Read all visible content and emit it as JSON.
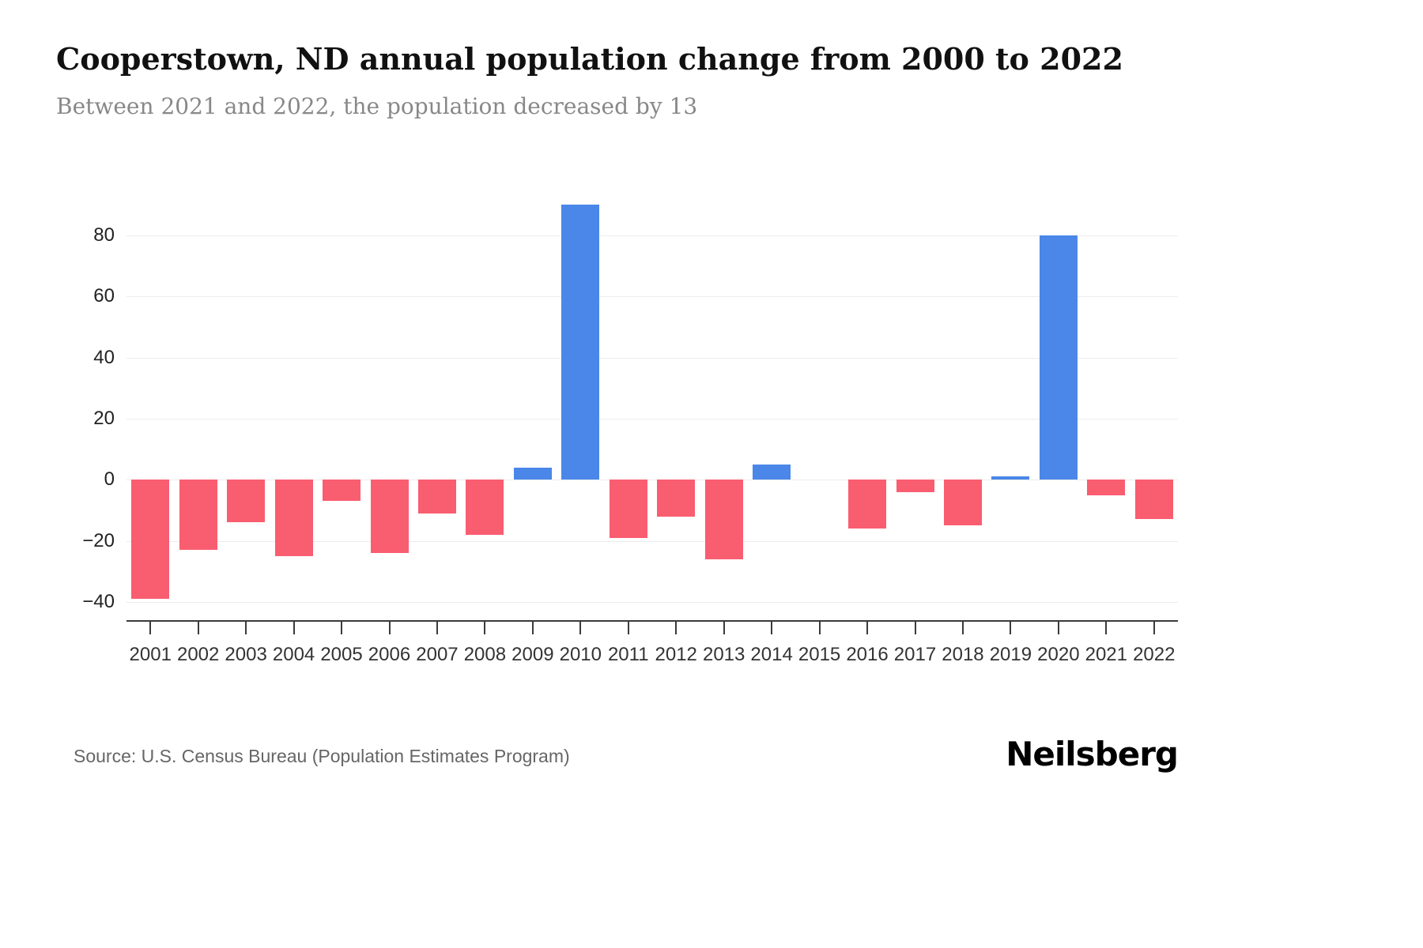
{
  "chart": {
    "title": "Cooperstown, ND annual population change from 2000 to 2022",
    "subtitle": "Between 2021 and 2022, the population decreased by 13",
    "source": "Source: U.S. Census Bureau (Population Estimates Program)",
    "brand": "Neilsberg"
  },
  "chart_data": {
    "type": "bar",
    "title": "Cooperstown, ND annual population change from 2000 to 2022",
    "subtitle": "Between 2021 and 2022, the population decreased by 13",
    "xlabel": "",
    "ylabel": "",
    "categories": [
      "2001",
      "2002",
      "2003",
      "2004",
      "2005",
      "2006",
      "2007",
      "2008",
      "2009",
      "2010",
      "2011",
      "2012",
      "2013",
      "2014",
      "2015",
      "2016",
      "2017",
      "2018",
      "2019",
      "2020",
      "2021",
      "2022"
    ],
    "values": [
      -39,
      -23,
      -14,
      -25,
      -7,
      -24,
      -11,
      -18,
      4,
      90,
      -19,
      -12,
      -26,
      5,
      0,
      -16,
      -4,
      -15,
      1,
      80,
      -5,
      -13
    ],
    "ylim": [
      -46,
      95
    ],
    "yticks": [
      -40,
      -20,
      0,
      20,
      40,
      60,
      80
    ],
    "grid": true,
    "legend": false,
    "colors": {
      "positive": "#4A87E8",
      "negative": "#F95D70",
      "gridline": "#ececec",
      "axis": "#3b3b3b"
    }
  }
}
